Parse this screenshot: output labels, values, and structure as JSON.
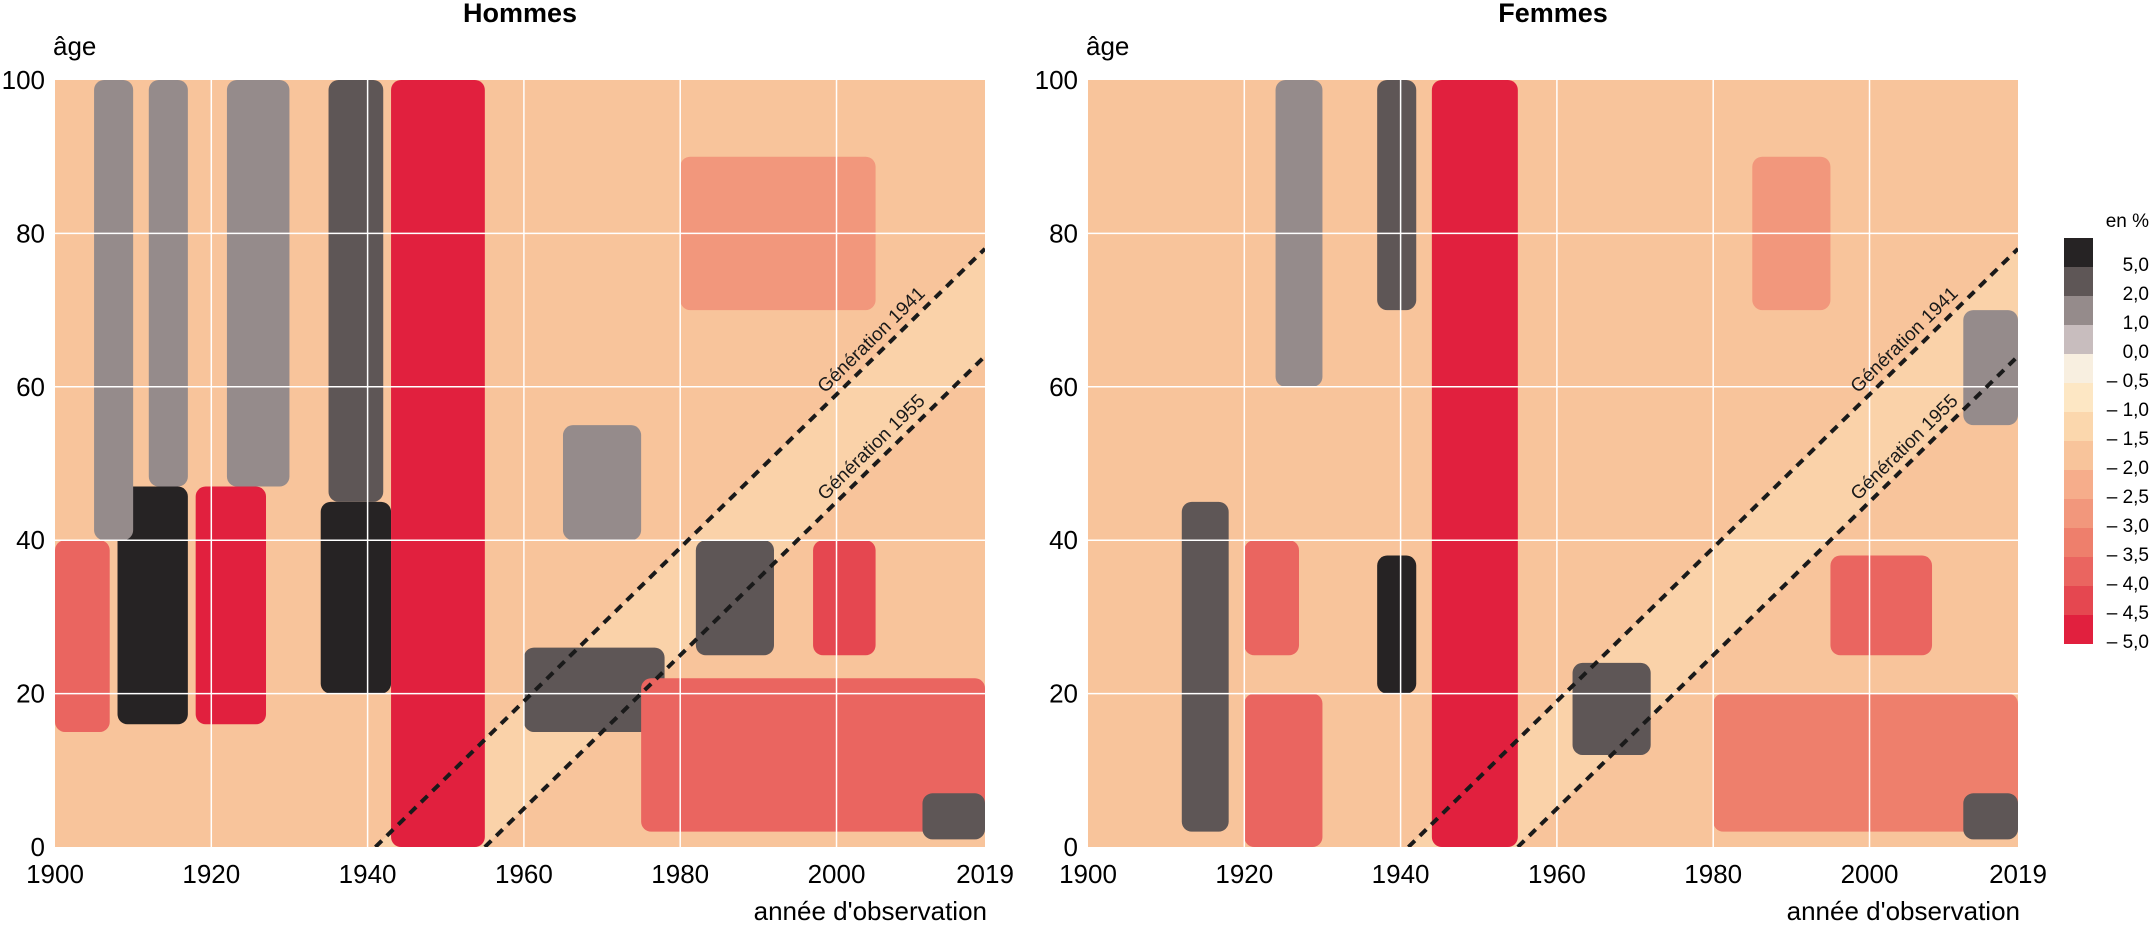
{
  "chart_data": [
    {
      "type": "heatmap",
      "title": "Hommes",
      "xlabel": "année d'observation",
      "ylabel": "âge",
      "xlim": [
        1900,
        2019
      ],
      "ylim": [
        0,
        100
      ],
      "xticks": [
        "1900",
        "1920",
        "1940",
        "1960",
        "1980",
        "2000",
        "2019"
      ],
      "yticks": [
        "0",
        "20",
        "40",
        "60",
        "80",
        "100"
      ],
      "annotations": [
        {
          "text": "Génération 1941",
          "cohort": 1941
        },
        {
          "text": "Génération 1955",
          "cohort": 1955
        }
      ],
      "regions": [
        {
          "value": 5.0,
          "x": [
            1908,
            1917
          ],
          "y": [
            16,
            47
          ]
        },
        {
          "value": -5.0,
          "x": [
            1918,
            1927
          ],
          "y": [
            16,
            47
          ]
        },
        {
          "value": -4.0,
          "x": [
            1900,
            1907
          ],
          "y": [
            15,
            40
          ]
        },
        {
          "value": 5.0,
          "x": [
            1934,
            1943
          ],
          "y": [
            20,
            45
          ]
        },
        {
          "value": 1.0,
          "x": [
            1905,
            1910
          ],
          "y": [
            40,
            100
          ]
        },
        {
          "value": 1.0,
          "x": [
            1912,
            1917
          ],
          "y": [
            47,
            100
          ]
        },
        {
          "value": 0.5,
          "x": [
            1922,
            1930
          ],
          "y": [
            47,
            100
          ]
        },
        {
          "value": 2.0,
          "x": [
            1935,
            1942
          ],
          "y": [
            45,
            100
          ]
        },
        {
          "value": -5.0,
          "x": [
            1943,
            1955
          ],
          "y": [
            0,
            100
          ]
        },
        {
          "value": 2.0,
          "x": [
            1960,
            1978
          ],
          "y": [
            15,
            26
          ]
        },
        {
          "value": 1.0,
          "x": [
            1965,
            1975
          ],
          "y": [
            40,
            55
          ]
        },
        {
          "value": 2.0,
          "x": [
            1982,
            1992
          ],
          "y": [
            25,
            40
          ]
        },
        {
          "value": -4.5,
          "x": [
            1997,
            2005
          ],
          "y": [
            25,
            40
          ]
        },
        {
          "value": -4.0,
          "x": [
            1975,
            2019
          ],
          "y": [
            2,
            22
          ]
        },
        {
          "value": -3.0,
          "x": [
            1980,
            2005
          ],
          "y": [
            70,
            90
          ]
        },
        {
          "value": 3.0,
          "x": [
            2011,
            2019
          ],
          "y": [
            1,
            7
          ]
        }
      ]
    },
    {
      "type": "heatmap",
      "title": "Femmes",
      "xlabel": "année d'observation",
      "ylabel": "âge",
      "xlim": [
        1900,
        2019
      ],
      "ylim": [
        0,
        100
      ],
      "xticks": [
        "1900",
        "1920",
        "1940",
        "1960",
        "1980",
        "2000",
        "2019"
      ],
      "yticks": [
        "0",
        "20",
        "40",
        "60",
        "80",
        "100"
      ],
      "annotations": [
        {
          "text": "Génération 1941",
          "cohort": 1941
        },
        {
          "text": "Génération 1955",
          "cohort": 1955
        }
      ],
      "regions": [
        {
          "value": 2.0,
          "x": [
            1912,
            1918
          ],
          "y": [
            2,
            45
          ]
        },
        {
          "value": -4.0,
          "x": [
            1920,
            1927
          ],
          "y": [
            25,
            40
          ]
        },
        {
          "value": -4.0,
          "x": [
            1920,
            1930
          ],
          "y": [
            0,
            20
          ]
        },
        {
          "value": 5.0,
          "x": [
            1937,
            1942
          ],
          "y": [
            20,
            38
          ]
        },
        {
          "value": 2.0,
          "x": [
            1937,
            1942
          ],
          "y": [
            70,
            100
          ]
        },
        {
          "value": 1.0,
          "x": [
            1924,
            1930
          ],
          "y": [
            60,
            100
          ]
        },
        {
          "value": -5.0,
          "x": [
            1944,
            1955
          ],
          "y": [
            0,
            100
          ]
        },
        {
          "value": 2.0,
          "x": [
            1962,
            1972
          ],
          "y": [
            12,
            24
          ]
        },
        {
          "value": -4.0,
          "x": [
            1995,
            2008
          ],
          "y": [
            25,
            38
          ]
        },
        {
          "value": -3.5,
          "x": [
            1980,
            2019
          ],
          "y": [
            2,
            20
          ]
        },
        {
          "value": -3.0,
          "x": [
            1985,
            1995
          ],
          "y": [
            70,
            90
          ]
        },
        {
          "value": 1.0,
          "x": [
            2012,
            2019
          ],
          "y": [
            55,
            70
          ]
        },
        {
          "value": 3.0,
          "x": [
            2012,
            2019
          ],
          "y": [
            1,
            7
          ]
        }
      ]
    }
  ],
  "legend": {
    "title": "en %",
    "items": [
      {
        "label": "5,0",
        "color": "#262324"
      },
      {
        "label": "2,0",
        "color": "#5e5656"
      },
      {
        "label": "1,0",
        "color": "#958b8b"
      },
      {
        "label": "0,0",
        "color": "#c8bdbe"
      },
      {
        "label": "– 0,5",
        "color": "#f8efe0"
      },
      {
        "label": "– 1,0",
        "color": "#fde7c4"
      },
      {
        "label": "– 1,5",
        "color": "#fbd7ad"
      },
      {
        "label": "– 2,0",
        "color": "#f8c49b"
      },
      {
        "label": "– 2,5",
        "color": "#f6ad8b"
      },
      {
        "label": "– 3,0",
        "color": "#f2977c"
      },
      {
        "label": "– 3,5",
        "color": "#ee7f6c"
      },
      {
        "label": "– 4,0",
        "color": "#ea6560"
      },
      {
        "label": "– 4,5",
        "color": "#e54750"
      },
      {
        "label": "– 5,0",
        "color": "#e1203e"
      }
    ]
  },
  "background_value_color": "#f8c49b",
  "grid_color": "#ffffff",
  "cohort_line_color": "#1a1a1a"
}
